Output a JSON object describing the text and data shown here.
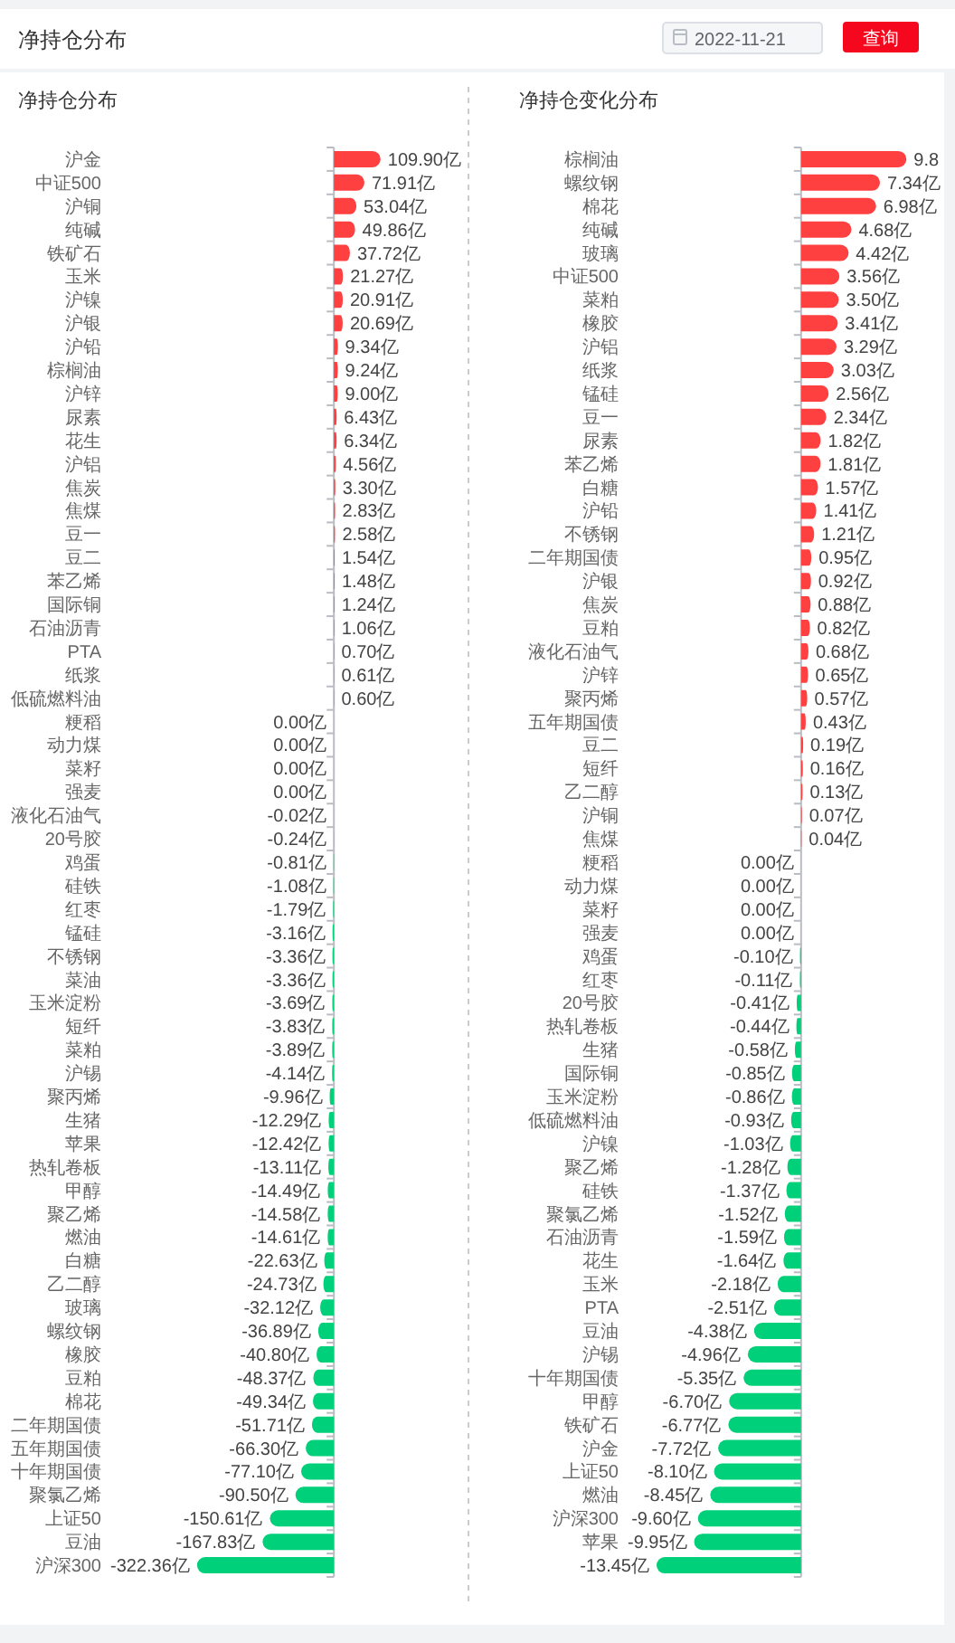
{
  "chart_data": [
    {
      "type": "bar",
      "orientation": "horizontal",
      "title": "净持仓分布",
      "annotations": [
        "净持仓分布",
        "2022-11-21",
        "查询"
      ],
      "categories": [
        "沪金",
        "中证500",
        "沪铜",
        "纯碱",
        "铁矿石",
        "玉米",
        "沪镍",
        "沪银",
        "沪铅",
        "棕榈油",
        "沪锌",
        "尿素",
        "花生",
        "沪铝",
        "焦炭",
        "焦煤",
        "豆一",
        "豆二",
        "苯乙烯",
        "国际铜",
        "石油沥青",
        "PTA",
        "纸浆",
        "低硫燃料油",
        "粳稻",
        "动力煤",
        "菜籽",
        "强麦",
        "液化石油气",
        "20号胶",
        "鸡蛋",
        "硅铁",
        "红枣",
        "锰硅",
        "不锈钢",
        "菜油",
        "玉米淀粉",
        "短纤",
        "菜粕",
        "沪锡",
        "聚丙烯",
        "生猪",
        "苹果",
        "热轧卷板",
        "甲醇",
        "聚乙烯",
        "燃油",
        "白糖",
        "乙二醇",
        "玻璃",
        "螺纹钢",
        "橡胶",
        "豆粕",
        "棉花",
        "二年期国债",
        "五年期国债",
        "十年期国债",
        "聚氯乙烯",
        "上证50",
        "豆油",
        "沪深300"
      ],
      "values": [
        109.9,
        71.91,
        53.04,
        49.86,
        37.72,
        21.27,
        20.91,
        20.69,
        9.34,
        9.24,
        9.0,
        6.43,
        6.34,
        4.56,
        3.3,
        2.83,
        2.58,
        1.54,
        1.48,
        1.24,
        1.06,
        0.7,
        0.61,
        0.6,
        0,
        0,
        0,
        0,
        -0.02,
        -0.24,
        -0.81,
        -1.08,
        -1.79,
        -3.16,
        -3.36,
        -3.36,
        -3.69,
        -3.83,
        -3.89,
        -4.14,
        -9.96,
        -12.29,
        -12.42,
        -13.11,
        -14.49,
        -14.58,
        -14.61,
        -22.63,
        -24.73,
        -32.12,
        -36.89,
        -40.8,
        -48.37,
        -49.34,
        -51.71,
        -66.3,
        -77.1,
        -90.5,
        -150.61,
        -167.83,
        -322.36
      ],
      "value_labels": [
        "109.90亿",
        "71.91亿",
        "53.04亿",
        "49.86亿",
        "37.72亿",
        "21.27亿",
        "20.91亿",
        "20.69亿",
        "9.34亿",
        "9.24亿",
        "9.00亿",
        "6.43亿",
        "6.34亿",
        "4.56亿",
        "3.30亿",
        "2.83亿",
        "2.58亿",
        "1.54亿",
        "1.48亿",
        "1.24亿",
        "1.06亿",
        "0.70亿",
        "0.61亿",
        "0.60亿",
        "0.00亿",
        "0.00亿",
        "0.00亿",
        "0.00亿",
        "-0.02亿",
        "-0.24亿",
        "-0.81亿",
        "-1.08亿",
        "-1.79亿",
        "-3.16亿",
        "-3.36亿",
        "-3.36亿",
        "-3.69亿",
        "-3.83亿",
        "-3.89亿",
        "-4.14亿",
        "-9.96亿",
        "-12.29亿",
        "-12.42亿",
        "-13.11亿",
        "-14.49亿",
        "-14.58亿",
        "-14.61亿",
        "-22.63亿",
        "-24.73亿",
        "-32.12亿",
        "-36.89亿",
        "-40.80亿",
        "-48.37亿",
        "-49.34亿",
        "-51.71亿",
        "-66.30亿",
        "-77.10亿",
        "-90.50亿",
        "-150.61亿",
        "-167.83亿",
        "-322.36亿"
      ],
      "colors": [
        "#ff4040",
        "#ff4040",
        "#ff4040",
        "#ff4040",
        "#ff4040",
        "#ff4040",
        "#ff4040",
        "#ff4040",
        "#ff4040",
        "#ff4040",
        "#ff4040",
        "#ff4040",
        "#ff4040",
        "#ff4040",
        "#ff4040",
        "#ff4040",
        "#ff4040",
        "#ff4040",
        "#ff4040",
        "#ff4040",
        "#ff4040",
        "#ff4040",
        "#ff4040",
        "#ff4040",
        null,
        null,
        null,
        null,
        "#00d07a",
        "#00d07a",
        "#00d07a",
        "#00d07a",
        "#00d07a",
        "#00d07a",
        "#00d07a",
        "#00d07a",
        "#00d07a",
        "#00d07a",
        "#00d07a",
        "#00d07a",
        "#00d07a",
        "#00d07a",
        "#00d07a",
        "#00d07a",
        "#00d07a",
        "#00d07a",
        "#00d07a",
        "#00d07a",
        "#00d07a",
        "#00d07a",
        "#00d07a",
        "#00d07a",
        "#00d07a",
        "#00d07a",
        "#00d07a",
        "#00d07a",
        "#00d07a",
        "#00d07a",
        "#00d07a",
        "#00d07a",
        "#00d07a"
      ]
    },
    {
      "type": "bar",
      "orientation": "horizontal",
      "title": "净持仓变化分布",
      "categories": [
        "棕榈油",
        "螺纹钢",
        "棉花",
        "纯碱",
        "玻璃",
        "中证500",
        "菜粕",
        "橡胶",
        "沪铝",
        "纸浆",
        "锰硅",
        "豆一",
        "尿素",
        "苯乙烯",
        "白糖",
        "沪铅",
        "不锈钢",
        "二年期国债",
        "沪银",
        "焦炭",
        "豆粕",
        "液化石油气",
        "沪锌",
        "聚丙烯",
        "五年期国债",
        "豆二",
        "短纤",
        "乙二醇",
        "沪铜",
        "焦煤",
        "粳稻",
        "动力煤",
        "菜籽",
        "强麦",
        "鸡蛋",
        "红枣",
        "20号胶",
        "热轧卷板",
        "生猪",
        "国际铜",
        "玉米淀粉",
        "低硫燃料油",
        "沪镍",
        "聚乙烯",
        "硅铁",
        "聚氯乙烯",
        "石油沥青",
        "花生",
        "玉米",
        "PTA",
        "豆油",
        "沪锡",
        "十年期国债",
        "甲醇",
        "铁矿石",
        "沪金",
        "上证50",
        "燃油",
        "沪深300",
        "苹果",
        null
      ],
      "values": [
        9.8,
        7.34,
        6.98,
        4.68,
        4.42,
        3.56,
        3.5,
        3.41,
        3.29,
        3.03,
        2.56,
        2.34,
        1.82,
        1.81,
        1.57,
        1.41,
        1.21,
        0.95,
        0.92,
        0.88,
        0.82,
        0.68,
        0.65,
        0.57,
        0.43,
        0.19,
        0.16,
        0.13,
        0.07,
        0.04,
        0,
        0,
        0,
        0,
        -0.1,
        -0.11,
        -0.41,
        -0.44,
        -0.58,
        -0.85,
        -0.86,
        -0.93,
        -1.03,
        -1.28,
        -1.37,
        -1.52,
        -1.59,
        -1.64,
        -2.18,
        -2.51,
        -4.38,
        -4.96,
        -5.35,
        -6.7,
        -6.77,
        -7.72,
        -8.1,
        -8.45,
        -9.6,
        -9.95,
        -13.45
      ],
      "value_labels": [
        "9.8",
        "7.34亿",
        "6.98亿",
        "4.68亿",
        "4.42亿",
        "3.56亿",
        "3.50亿",
        "3.41亿",
        "3.29亿",
        "3.03亿",
        "2.56亿",
        "2.34亿",
        "1.82亿",
        "1.81亿",
        "1.57亿",
        "1.41亿",
        "1.21亿",
        "0.95亿",
        "0.92亿",
        "0.88亿",
        "0.82亿",
        "0.68亿",
        "0.65亿",
        "0.57亿",
        "0.43亿",
        "0.19亿",
        "0.16亿",
        "0.13亿",
        "0.07亿",
        "0.04亿",
        "0.00亿",
        "0.00亿",
        "0.00亿",
        "0.00亿",
        "-0.10亿",
        "-0.11亿",
        "-0.41亿",
        "-0.44亿",
        "-0.58亿",
        "-0.85亿",
        "-0.86亿",
        "-0.93亿",
        "-1.03亿",
        "-1.28亿",
        "-1.37亿",
        "-1.52亿",
        "-1.59亿",
        "-1.64亿",
        "-2.18亿",
        "-2.51亿",
        "-4.38亿",
        "-4.96亿",
        "-5.35亿",
        "-6.70亿",
        "-6.77亿",
        "-7.72亿",
        "-8.10亿",
        "-8.45亿",
        "-9.60亿",
        "-9.95亿",
        "-13.45亿"
      ],
      "colors": [
        "#ff4040",
        "#ff4040",
        "#ff4040",
        "#ff4040",
        "#ff4040",
        "#ff4040",
        "#ff4040",
        "#ff4040",
        "#ff4040",
        "#ff4040",
        "#ff4040",
        "#ff4040",
        "#ff4040",
        "#ff4040",
        "#ff4040",
        "#ff4040",
        "#ff4040",
        "#ff4040",
        "#ff4040",
        "#ff4040",
        "#ff4040",
        "#ff4040",
        "#ff4040",
        "#ff4040",
        "#ff4040",
        "#ff4040",
        "#ff4040",
        "#ff4040",
        "#ff4040",
        "#ff4040",
        null,
        null,
        null,
        null,
        "#00d07a",
        "#00d07a",
        "#00d07a",
        "#00d07a",
        "#00d07a",
        "#00d07a",
        "#00d07a",
        "#00d07a",
        "#00d07a",
        "#00d07a",
        "#00d07a",
        "#00d07a",
        "#00d07a",
        "#00d07a",
        "#00d07a",
        "#00d07a",
        "#00d07a",
        "#00d07a",
        "#00d07a",
        "#00d07a",
        "#00d07a",
        "#00d07a",
        "#00d07a",
        "#00d07a",
        "#00d07a",
        "#00d07a",
        "#00d07a"
      ]
    }
  ]
}
